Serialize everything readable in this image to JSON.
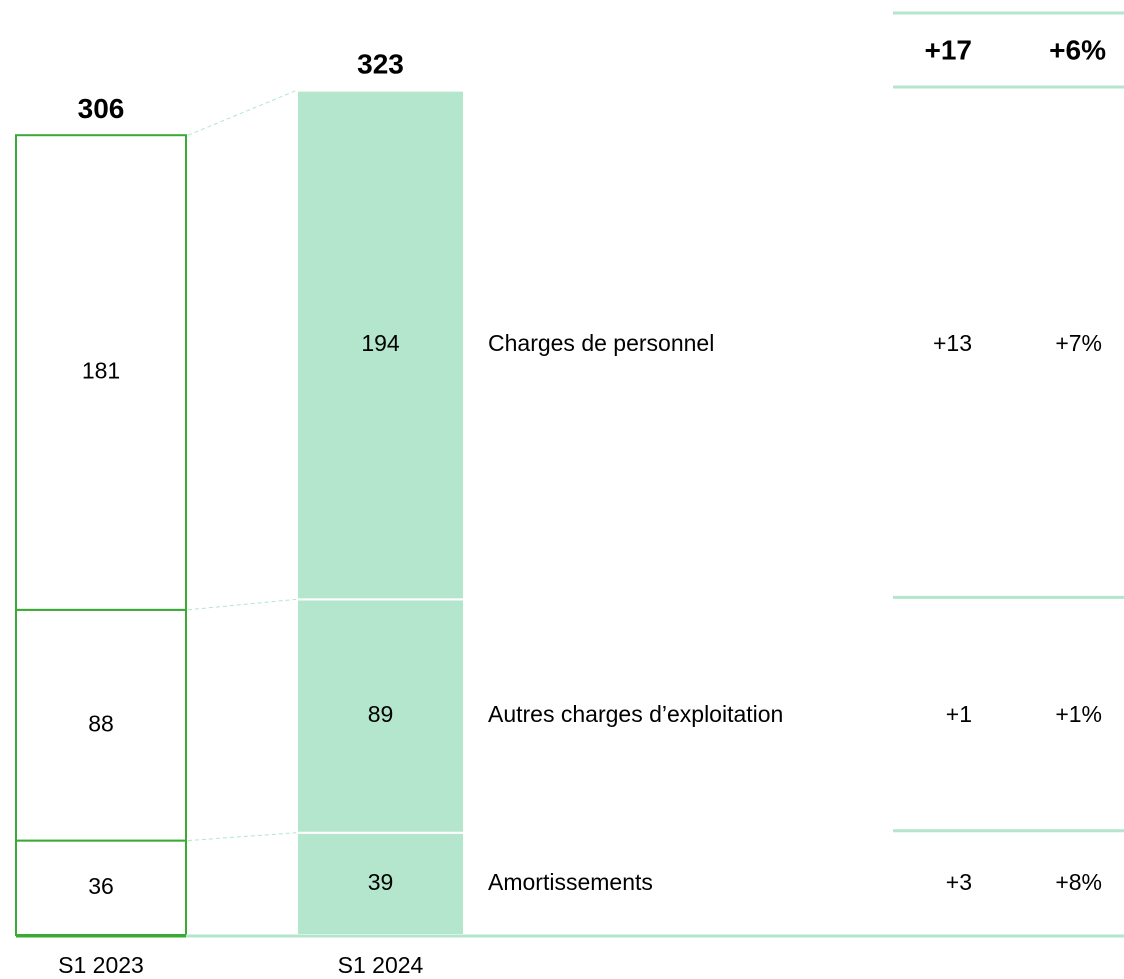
{
  "chart_data": {
    "type": "stacked-bar",
    "categories": [
      "S1 2023",
      "S1 2024"
    ],
    "totals": [
      306,
      323
    ],
    "series": [
      {
        "name": "Charges de personnel",
        "values": [
          181,
          194
        ]
      },
      {
        "name": "Autres charges d’exploitation",
        "values": [
          88,
          89
        ]
      },
      {
        "name": "Amortissements",
        "values": [
          36,
          39
        ]
      }
    ],
    "colors": [
      "#ffffff",
      "#b3e6cc"
    ],
    "outline_color": "#3aaa35",
    "variation_total": [
      "+17",
      "+6%"
    ],
    "variations": [
      [
        "+13",
        "+7%"
      ],
      [
        "+1",
        "+1%"
      ],
      [
        "+3",
        "+8%"
      ]
    ]
  }
}
